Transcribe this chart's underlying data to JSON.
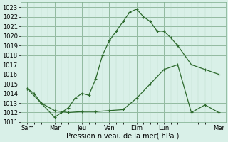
{
  "xlabel": "Pression niveau de la mer( hPa )",
  "ylim": [
    1011,
    1023.5
  ],
  "yticks": [
    1011,
    1012,
    1013,
    1014,
    1015,
    1016,
    1017,
    1018,
    1019,
    1020,
    1021,
    1022,
    1023
  ],
  "day_labels": [
    "Sam",
    "Mar",
    "Jeu",
    "Ven",
    "Dim",
    "Lun",
    "Mer"
  ],
  "day_positions": [
    0,
    24,
    48,
    72,
    96,
    120,
    168
  ],
  "xlim": [
    -6,
    174
  ],
  "background_color": "#d9f0e8",
  "line_color": "#2d6a2d",
  "line1_x": [
    0,
    6,
    12,
    24,
    30,
    36,
    42,
    48,
    54,
    60,
    66,
    72,
    78,
    84,
    90,
    96,
    102,
    108,
    114,
    120,
    126,
    132,
    144,
    156,
    168
  ],
  "line1_y": [
    1014.5,
    1014.0,
    1013.0,
    1011.5,
    1012.0,
    1012.5,
    1013.5,
    1014.0,
    1013.8,
    1015.5,
    1018.0,
    1019.5,
    1020.5,
    1021.5,
    1022.5,
    1022.8,
    1022.0,
    1021.5,
    1020.5,
    1020.5,
    1019.8,
    1019.0,
    1017.0,
    1016.5,
    1016.0
  ],
  "line2_x": [
    0,
    12,
    24,
    36,
    48,
    60,
    72,
    84,
    96,
    108,
    120,
    132,
    144,
    156,
    168
  ],
  "line2_y": [
    1014.5,
    1013.0,
    1012.2,
    1012.0,
    1012.1,
    1012.1,
    1012.2,
    1012.3,
    1013.5,
    1015.0,
    1016.5,
    1017.0,
    1012.0,
    1012.8,
    1012.0
  ]
}
